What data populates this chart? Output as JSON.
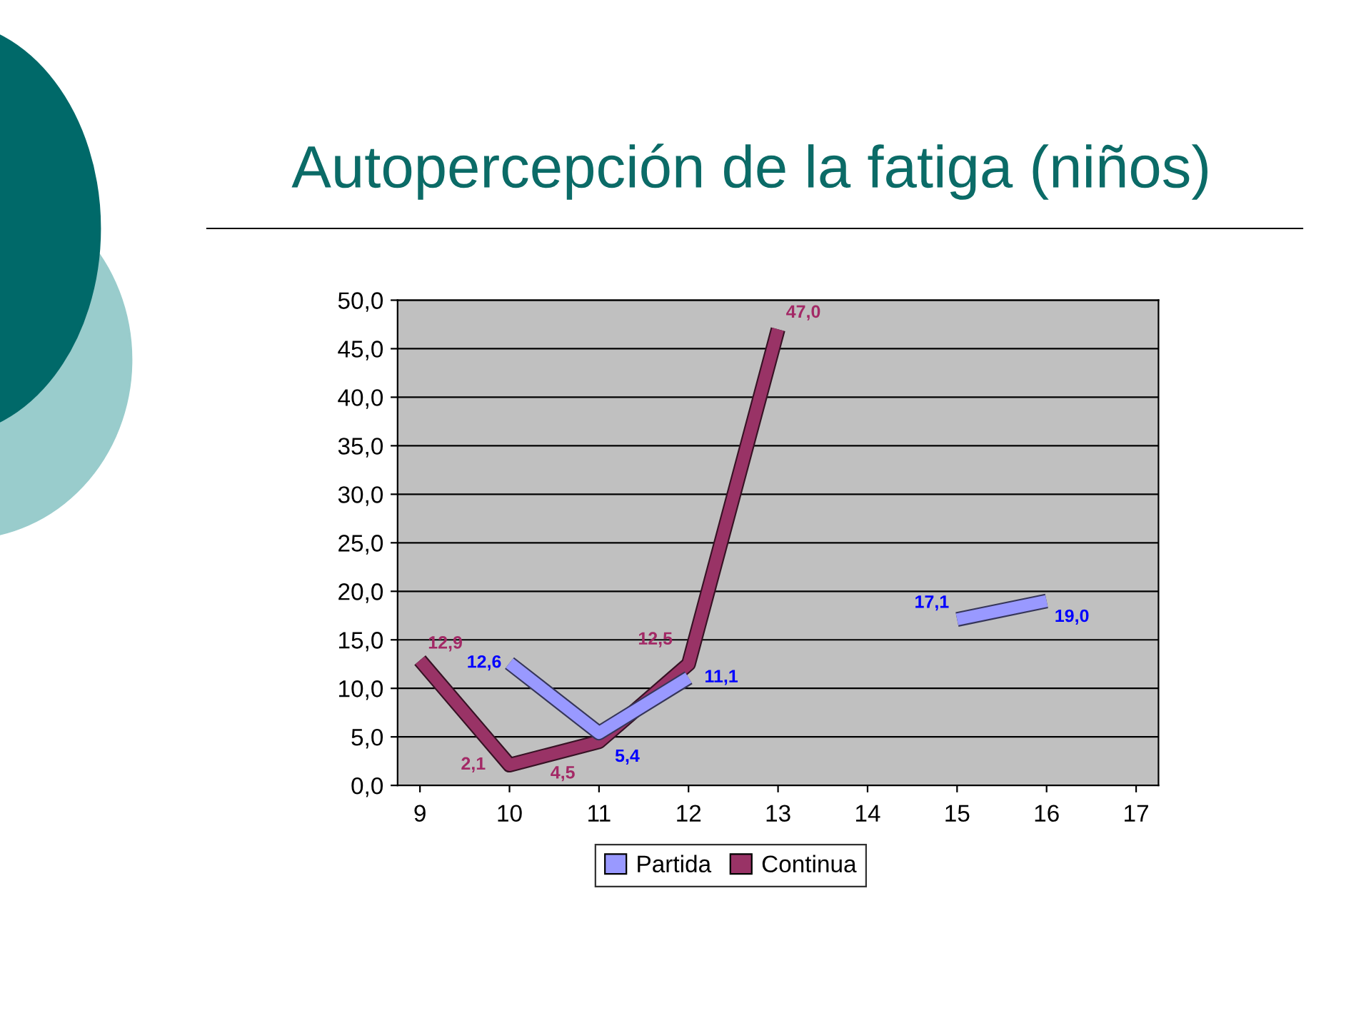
{
  "chart_data": {
    "type": "line",
    "title": "Autopercepción de la fatiga (niños)",
    "categories": [
      "9",
      "10",
      "11",
      "12",
      "13",
      "14",
      "15",
      "16",
      "17"
    ],
    "series": [
      {
        "name": "Partida",
        "color": "#9999ff",
        "values": [
          null,
          12.6,
          5.4,
          11.1,
          null,
          null,
          17.1,
          19.0,
          null
        ],
        "value_labels": [
          null,
          "12,6",
          "5,4",
          "11,1",
          null,
          null,
          "17,1",
          "19,0",
          null
        ]
      },
      {
        "name": "Continua",
        "color": "#993366",
        "values": [
          12.9,
          2.1,
          4.5,
          12.5,
          47.0,
          null,
          null,
          null,
          null
        ],
        "value_labels": [
          "12,9",
          "2,1",
          "4,5",
          "12,5",
          "47,0",
          null,
          null,
          null,
          null
        ]
      }
    ],
    "ylim": [
      0,
      50
    ],
    "yticks": [
      {
        "value": 0,
        "label": "0,0"
      },
      {
        "value": 5,
        "label": "5,0"
      },
      {
        "value": 10,
        "label": "10,0"
      },
      {
        "value": 15,
        "label": "15,0"
      },
      {
        "value": 20,
        "label": "20,0"
      },
      {
        "value": 25,
        "label": "25,0"
      },
      {
        "value": 30,
        "label": "30,0"
      },
      {
        "value": 35,
        "label": "35,0"
      },
      {
        "value": 40,
        "label": "40,0"
      },
      {
        "value": 45,
        "label": "45,0"
      },
      {
        "value": 50,
        "label": "50,0"
      }
    ],
    "grid": "y",
    "legend": "bottom"
  }
}
